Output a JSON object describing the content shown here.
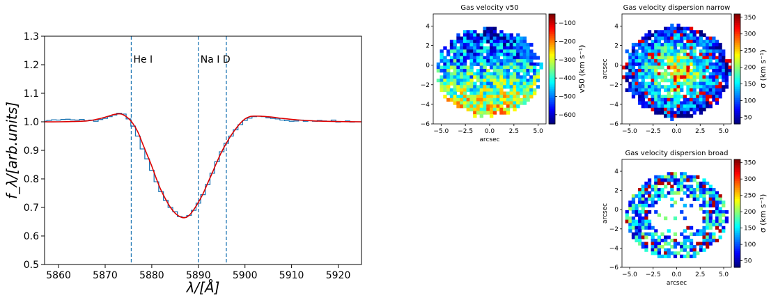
{
  "colors": {
    "data_step": "#1f77b4",
    "fit": "#dd0000",
    "marker": "#1f77b4",
    "frame": "#000000"
  },
  "chart_data": [
    {
      "type": "line",
      "title": "",
      "xlabel": "λ/[Å]",
      "ylabel": "f_λ/[arb.units]",
      "xlim": [
        5857,
        5925
      ],
      "ylim": [
        0.5,
        1.3
      ],
      "xticks": [
        5860,
        5870,
        5880,
        5890,
        5900,
        5910,
        5920
      ],
      "yticks": [
        "0.5",
        "0.6",
        "0.7",
        "0.8",
        "0.9",
        "1.0",
        "1.1",
        "1.2",
        "1.3"
      ],
      "markers": [
        {
          "x": 5875.6,
          "label": "He I"
        },
        {
          "x": 5890.0,
          "label": "Na I D"
        },
        {
          "x": 5896.0,
          "label": ""
        }
      ],
      "series": [
        {
          "style": "step",
          "x": [
            5857,
            5858,
            5859,
            5860,
            5861,
            5862,
            5863,
            5864,
            5865,
            5866,
            5867,
            5868,
            5869,
            5870,
            5871,
            5872,
            5873,
            5874,
            5875,
            5876,
            5877,
            5878,
            5879,
            5880,
            5881,
            5882,
            5883,
            5884,
            5885,
            5886,
            5887,
            5888,
            5889,
            5890,
            5891,
            5892,
            5893,
            5894,
            5895,
            5896,
            5897,
            5898,
            5899,
            5900,
            5901,
            5902,
            5903,
            5904,
            5905,
            5906,
            5907,
            5908,
            5909,
            5910,
            5911,
            5912,
            5913,
            5914,
            5915,
            5916,
            5917,
            5918,
            5919,
            5920,
            5921,
            5922,
            5923,
            5924,
            5925
          ],
          "y": [
            1.002,
            1.005,
            1.007,
            1.006,
            1.008,
            1.009,
            1.007,
            1.006,
            1.008,
            1.004,
            1.006,
            1.002,
            1.008,
            1.012,
            1.018,
            1.024,
            1.03,
            1.027,
            1.01,
            0.985,
            0.95,
            0.905,
            0.87,
            0.83,
            0.79,
            0.755,
            0.725,
            0.7,
            0.685,
            0.668,
            0.665,
            0.672,
            0.69,
            0.715,
            0.745,
            0.78,
            0.82,
            0.86,
            0.895,
            0.925,
            0.95,
            0.972,
            0.99,
            1.005,
            1.013,
            1.018,
            1.02,
            1.018,
            1.014,
            1.012,
            1.01,
            1.006,
            1.004,
            1.002,
            1.003,
            1.006,
            1.002,
            1.004,
            1.002,
            1.005,
            1.003,
            1.002,
            1.006,
            0.999,
            1.001,
            1.003,
            0.999,
            1.0,
            1.0
          ]
        },
        {
          "style": "line",
          "x": [
            5857,
            5860,
            5863,
            5866,
            5868,
            5870,
            5872,
            5873.5,
            5875,
            5876,
            5877,
            5878,
            5879,
            5880,
            5881,
            5882,
            5883,
            5884,
            5885,
            5886,
            5887,
            5888,
            5889,
            5890,
            5891,
            5892,
            5893,
            5894,
            5895,
            5896,
            5897,
            5898,
            5899,
            5900,
            5901,
            5902,
            5904,
            5906,
            5908,
            5911,
            5915,
            5920,
            5925
          ],
          "y": [
            1.0,
            1.0,
            1.001,
            1.003,
            1.008,
            1.016,
            1.026,
            1.027,
            1.012,
            0.993,
            0.965,
            0.925,
            0.885,
            0.845,
            0.8,
            0.76,
            0.728,
            0.7,
            0.68,
            0.668,
            0.664,
            0.672,
            0.692,
            0.718,
            0.748,
            0.785,
            0.822,
            0.86,
            0.895,
            0.925,
            0.952,
            0.975,
            0.995,
            1.01,
            1.018,
            1.02,
            1.019,
            1.016,
            1.012,
            1.007,
            1.003,
            1.001,
            1.0
          ]
        }
      ]
    },
    {
      "type": "heatmap",
      "title": "Gas velocity v50",
      "xlabel": "arcsec",
      "ylabel": "",
      "xticks": [
        "−5.0",
        "−2.5",
        "0.0",
        "2.5",
        "5.0"
      ],
      "yticks": [
        "4",
        "2",
        "0",
        "−2",
        "−4",
        "−6"
      ],
      "colorbar_label": "v50 (km s⁻¹)",
      "colorbar_ticks": [
        "−100",
        "−200",
        "−300",
        "−400",
        "−500",
        "−600"
      ],
      "colorbar_range": [
        -650,
        -50
      ]
    },
    {
      "type": "heatmap",
      "title": "Gas velocity dispersion narrow",
      "xlabel": "",
      "ylabel": "arcsec",
      "xticks": [
        "−5.0",
        "−2.5",
        "0.0",
        "2.5",
        "5.0"
      ],
      "yticks": [
        "4",
        "2",
        "0",
        "−2",
        "−4",
        "−6"
      ],
      "colorbar_label": "σ (km s⁻¹)",
      "colorbar_ticks": [
        "350",
        "300",
        "250",
        "200",
        "150",
        "100",
        "50"
      ],
      "colorbar_range": [
        30,
        360
      ]
    },
    {
      "type": "heatmap",
      "title": "Gas velocity dispersion broad",
      "xlabel": "arcsec",
      "ylabel": "arcsec",
      "xticks": [
        "−5.0",
        "−2.5",
        "0.0",
        "2.5",
        "5.0"
      ],
      "yticks": [
        "4",
        "2",
        "0",
        "−2",
        "−4",
        "−6"
      ],
      "colorbar_label": "σ (km s⁻¹)",
      "colorbar_ticks": [
        "350",
        "300",
        "250",
        "200",
        "150",
        "100",
        "50"
      ],
      "colorbar_range": [
        30,
        360
      ]
    }
  ]
}
